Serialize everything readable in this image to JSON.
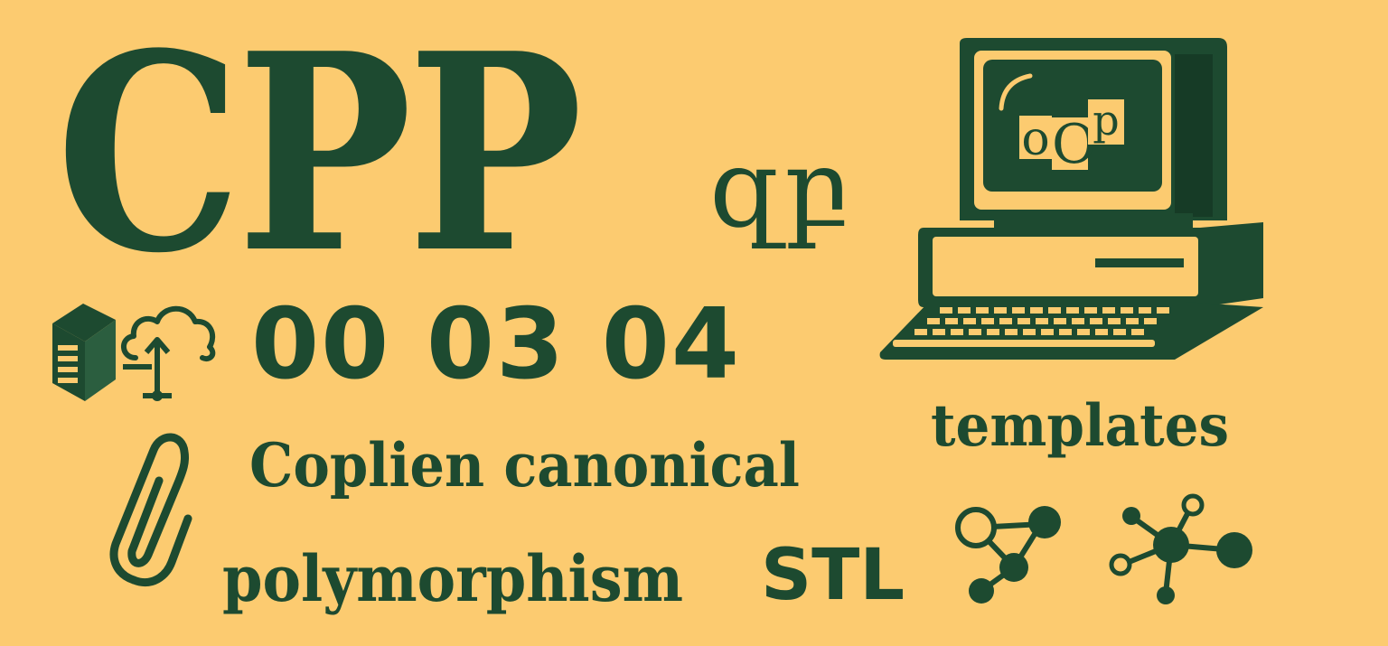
{
  "title": "CPP",
  "glyphs": "զբ",
  "numbers": "00 03 04",
  "topics": {
    "coplien": "Coplien canonical",
    "polymorphism": "polymorphism",
    "stl": "STL",
    "templates": "templates"
  },
  "screen_letters": [
    "o",
    "O",
    "p"
  ],
  "icons": [
    "server-icon",
    "cloud-upload-icon",
    "paperclip-icon",
    "computer-icon",
    "graph-nodes-icon",
    "network-hub-icon"
  ],
  "colors": {
    "background": "#fccb70",
    "ink": "#1d4a30"
  }
}
